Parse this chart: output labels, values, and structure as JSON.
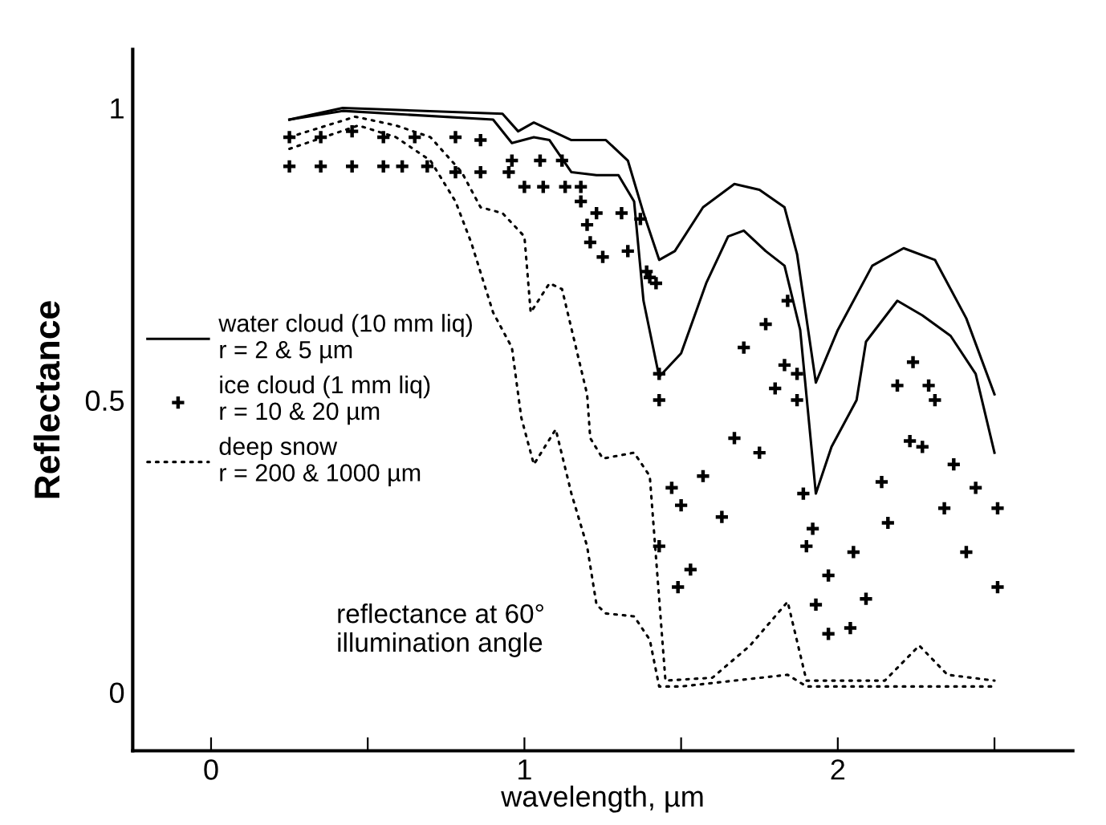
{
  "chart_data": {
    "type": "line",
    "xlabel": "wavelength, µm",
    "ylabel": "Reflectance",
    "xlim": [
      -0.25,
      2.75
    ],
    "ylim": [
      -0.1,
      1.1
    ],
    "xticks": [
      0,
      {
        "value": 0.5,
        "label": null
      },
      1,
      {
        "value": 1.5,
        "label": null
      },
      2,
      {
        "value": 2.5,
        "label": null
      }
    ],
    "yticks": [
      0,
      0.5,
      1
    ],
    "grid": false,
    "legend": "center left",
    "annotations": [
      "reflectance at 60°\nillumination angle"
    ],
    "series": [
      {
        "name": "water cloud (10 mm liq)\nr = 2 & 5 µm",
        "color": "#000000",
        "line_style": "solid",
        "marker": "none",
        "x": [
          0.25,
          0.42,
          0.93,
          0.98,
          1.03,
          1.15,
          1.26,
          1.33,
          1.38,
          1.43,
          1.48,
          1.57,
          1.67,
          1.75,
          1.83,
          1.87,
          1.93,
          2.0,
          2.11,
          2.21,
          2.31,
          2.41,
          2.5
        ],
        "values": [
          0.98,
          1.0,
          0.99,
          0.96,
          0.975,
          0.945,
          0.945,
          0.91,
          0.82,
          0.74,
          0.755,
          0.83,
          0.87,
          0.86,
          0.83,
          0.75,
          0.53,
          0.62,
          0.73,
          0.76,
          0.74,
          0.64,
          0.51
        ]
      },
      {
        "color": "#000000",
        "line_style": "solid",
        "marker": "none",
        "x": [
          0.25,
          0.42,
          0.9,
          0.96,
          1.03,
          1.08,
          1.15,
          1.23,
          1.3,
          1.35,
          1.38,
          1.43,
          1.5,
          1.58,
          1.65,
          1.7,
          1.77,
          1.83,
          1.88,
          1.93,
          1.98,
          2.06,
          2.09,
          2.19,
          2.27,
          2.36,
          2.44,
          2.5
        ],
        "values": [
          0.98,
          0.995,
          0.98,
          0.94,
          0.95,
          0.945,
          0.89,
          0.885,
          0.885,
          0.84,
          0.67,
          0.54,
          0.58,
          0.7,
          0.78,
          0.79,
          0.755,
          0.73,
          0.62,
          0.34,
          0.42,
          0.5,
          0.6,
          0.67,
          0.645,
          0.61,
          0.545,
          0.41
        ]
      },
      {
        "name": "ice cloud (1 mm liq)\nr = 10 & 20 µm",
        "type": "scatter",
        "color": "#000000",
        "marker": "cross",
        "x": [
          0.25,
          0.35,
          0.45,
          0.55,
          0.65,
          0.78,
          0.86,
          0.96,
          1.05,
          1.12,
          1.18,
          1.23,
          1.31,
          1.37,
          1.42,
          1.43,
          1.47,
          1.5,
          1.57,
          1.67,
          1.7,
          1.77,
          1.84,
          1.87,
          1.89,
          1.92,
          1.97,
          2.05,
          2.14,
          2.19,
          2.24,
          2.29,
          2.31,
          2.37,
          2.44,
          2.51
        ],
        "values": [
          0.95,
          0.95,
          0.96,
          0.95,
          0.95,
          0.95,
          0.945,
          0.91,
          0.91,
          0.91,
          0.865,
          0.82,
          0.82,
          0.81,
          0.7,
          0.5,
          0.35,
          0.32,
          0.37,
          0.435,
          0.59,
          0.63,
          0.67,
          0.545,
          0.34,
          0.28,
          0.2,
          0.24,
          0.36,
          0.525,
          0.565,
          0.525,
          0.5,
          0.39,
          0.35,
          0.315
        ]
      },
      {
        "type": "scatter",
        "color": "#000000",
        "marker": "cross",
        "x": [
          0.25,
          0.35,
          0.45,
          0.55,
          0.61,
          0.69,
          0.78,
          0.86,
          0.95,
          1.0,
          1.06,
          1.13,
          1.18,
          1.2,
          1.21,
          1.25,
          1.33,
          1.39,
          1.4,
          1.43,
          1.43,
          1.49,
          1.53,
          1.63,
          1.75,
          1.8,
          1.83,
          1.87,
          1.9,
          1.93,
          1.97,
          2.04,
          2.09,
          2.16,
          2.23,
          2.27,
          2.34,
          2.41,
          2.51
        ],
        "values": [
          0.9,
          0.9,
          0.9,
          0.9,
          0.9,
          0.9,
          0.89,
          0.89,
          0.89,
          0.865,
          0.865,
          0.865,
          0.84,
          0.8,
          0.77,
          0.745,
          0.755,
          0.72,
          0.71,
          0.545,
          0.25,
          0.18,
          0.21,
          0.3,
          0.41,
          0.52,
          0.56,
          0.5,
          0.25,
          0.15,
          0.1,
          0.11,
          0.16,
          0.29,
          0.43,
          0.42,
          0.315,
          0.24,
          0.18
        ]
      },
      {
        "name": "deep snow\nr = 200 & 1000 µm",
        "color": "#000000",
        "line_style": "dotted",
        "marker": "none",
        "x": [
          0.25,
          0.46,
          0.59,
          0.7,
          0.8,
          0.86,
          0.93,
          1.0,
          1.02,
          1.08,
          1.12,
          1.16,
          1.2,
          1.21,
          1.25,
          1.35,
          1.4,
          1.43,
          1.45,
          1.6,
          1.72,
          1.84,
          1.9,
          2.0,
          2.15,
          2.26,
          2.35,
          2.5
        ],
        "values": [
          0.95,
          0.985,
          0.97,
          0.95,
          0.89,
          0.83,
          0.82,
          0.78,
          0.65,
          0.7,
          0.69,
          0.6,
          0.51,
          0.435,
          0.4,
          0.41,
          0.37,
          0.16,
          0.02,
          0.025,
          0.08,
          0.155,
          0.02,
          0.02,
          0.02,
          0.08,
          0.03,
          0.02
        ]
      },
      {
        "color": "#000000",
        "line_style": "dotted",
        "marker": "none",
        "x": [
          0.25,
          0.47,
          0.59,
          0.7,
          0.78,
          0.83,
          0.9,
          0.96,
          0.99,
          1.03,
          1.1,
          1.15,
          1.2,
          1.23,
          1.26,
          1.35,
          1.4,
          1.43,
          1.5,
          1.84,
          1.9,
          2.5
        ],
        "values": [
          0.93,
          0.97,
          0.95,
          0.91,
          0.84,
          0.77,
          0.65,
          0.59,
          0.47,
          0.39,
          0.45,
          0.34,
          0.25,
          0.15,
          0.135,
          0.13,
          0.09,
          0.01,
          0.01,
          0.03,
          0.01,
          0.01
        ]
      }
    ]
  }
}
